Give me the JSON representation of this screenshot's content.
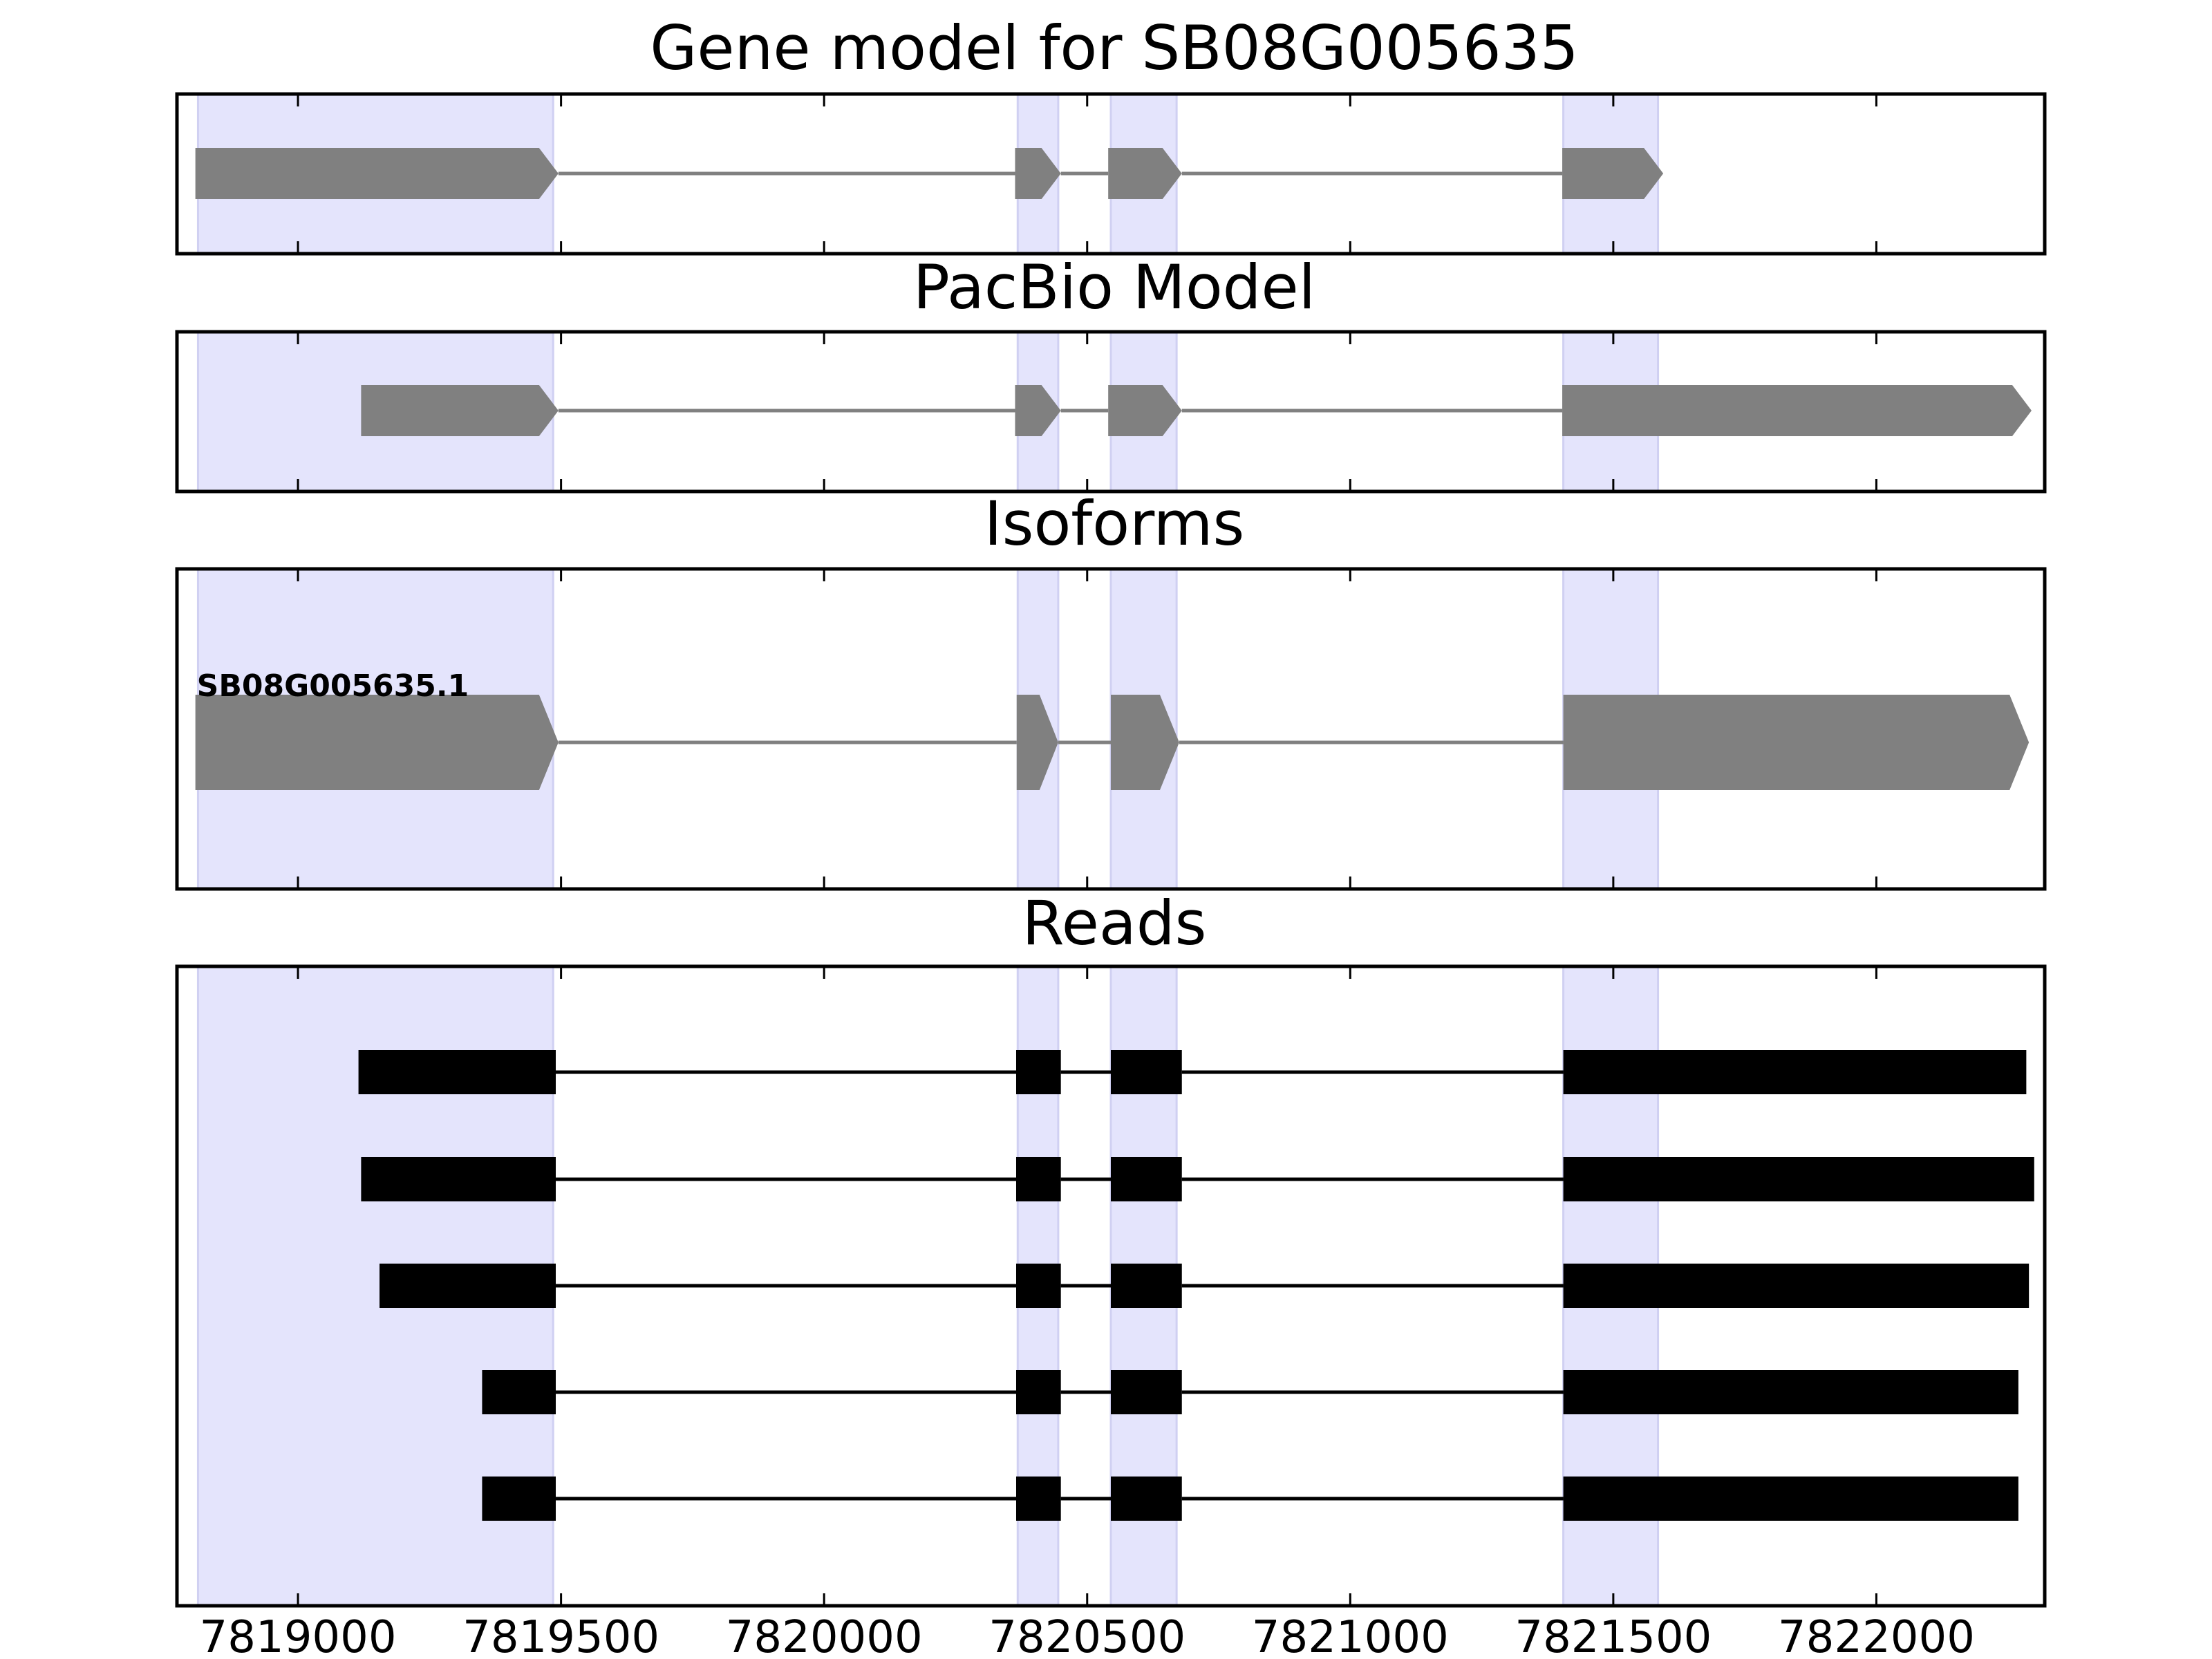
{
  "chart_data": {
    "type": "gene-model-tracks",
    "x_axis": {
      "range": [
        7818770,
        7822320
      ],
      "ticks": [
        7819000,
        7819500,
        7820000,
        7820500,
        7821000,
        7821500,
        7822000
      ],
      "tick_labels": [
        "7819000",
        "7819500",
        "7820000",
        "7820500",
        "7821000",
        "7821500",
        "7822000"
      ]
    },
    "highlight_regions": [
      [
        7818810,
        7819485
      ],
      [
        7820368,
        7820445
      ],
      [
        7820545,
        7820670
      ],
      [
        7821405,
        7821585
      ]
    ],
    "colors": {
      "highlight": "#e4e4fc",
      "model_feature": "#808080",
      "read_feature": "#000000"
    },
    "panels": [
      {
        "title": "Gene model for SB08G005635",
        "kind": "model",
        "tracks": [
          {
            "strand": "+",
            "exons": [
              [
                7818805,
                7819495
              ],
              [
                7820363,
                7820450
              ],
              [
                7820540,
                7820680
              ],
              [
                7821403,
                7821595
              ]
            ]
          }
        ]
      },
      {
        "title": "PacBio Model",
        "kind": "model",
        "tracks": [
          {
            "strand": "+",
            "exons": [
              [
                7819120,
                7819495
              ],
              [
                7820363,
                7820450
              ],
              [
                7820540,
                7820680
              ],
              [
                7821403,
                7822295
              ]
            ]
          }
        ]
      },
      {
        "title": "Isoforms",
        "kind": "model",
        "tracks": [
          {
            "label": "SB08G005635.1",
            "strand": "+",
            "exons": [
              [
                7818805,
                7819495
              ],
              [
                7820366,
                7820445
              ],
              [
                7820545,
                7820675
              ],
              [
                7821405,
                7822290
              ]
            ]
          }
        ]
      },
      {
        "title": "Reads",
        "kind": "reads",
        "tracks": [
          {
            "exons": [
              [
                7819115,
                7819490
              ],
              [
                7820365,
                7820450
              ],
              [
                7820545,
                7820680
              ],
              [
                7821405,
                7822285
              ]
            ]
          },
          {
            "exons": [
              [
                7819120,
                7819490
              ],
              [
                7820365,
                7820450
              ],
              [
                7820545,
                7820680
              ],
              [
                7821405,
                7822300
              ]
            ]
          },
          {
            "exons": [
              [
                7819155,
                7819490
              ],
              [
                7820365,
                7820450
              ],
              [
                7820545,
                7820680
              ],
              [
                7821405,
                7822290
              ]
            ]
          },
          {
            "exons": [
              [
                7819350,
                7819490
              ],
              [
                7820365,
                7820450
              ],
              [
                7820545,
                7820680
              ],
              [
                7821405,
                7822270
              ]
            ]
          },
          {
            "exons": [
              [
                7819350,
                7819490
              ],
              [
                7820365,
                7820450
              ],
              [
                7820545,
                7820680
              ],
              [
                7821405,
                7822270
              ]
            ]
          }
        ]
      }
    ]
  }
}
